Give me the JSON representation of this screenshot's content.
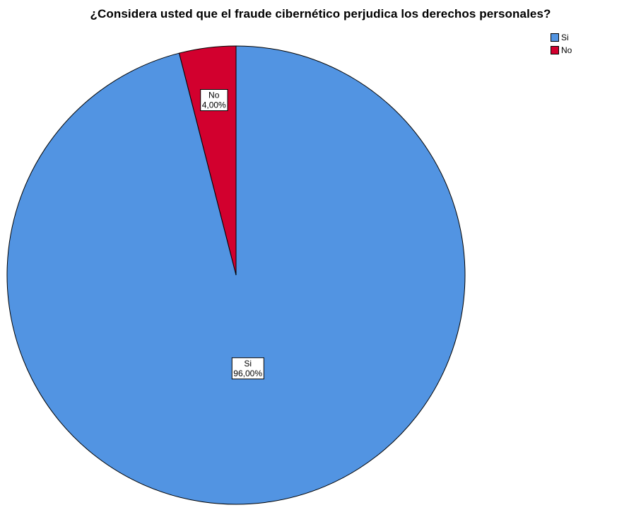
{
  "chart_data": {
    "type": "pie",
    "title": "¿Considera usted que el fraude cibernético perjudica los derechos personales?",
    "categories": [
      "Si",
      "No"
    ],
    "values": [
      96.0,
      4.0
    ],
    "value_labels": [
      "96,00%",
      "4,00%"
    ],
    "colors": [
      "#5294E2",
      "#D2002E"
    ],
    "start_angle_deg": 0,
    "direction": "counterclockwise",
    "legend": {
      "placement": "top-right",
      "entries": [
        "Si",
        "No"
      ]
    }
  }
}
